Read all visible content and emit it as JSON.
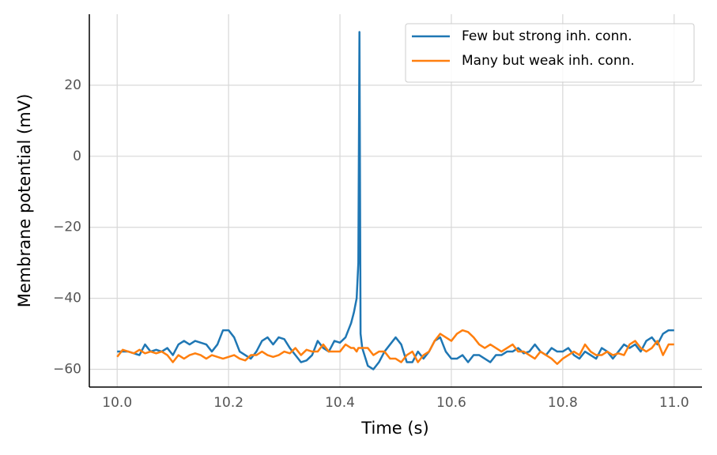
{
  "chart_data": {
    "type": "line",
    "x_label": "Time (s)",
    "y_label": "Membrane potential (mV)",
    "x": [
      10.0,
      10.01,
      10.02,
      10.03,
      10.04,
      10.05,
      10.06,
      10.07,
      10.08,
      10.09,
      10.1,
      10.11,
      10.12,
      10.13,
      10.14,
      10.15,
      10.16,
      10.17,
      10.18,
      10.19,
      10.2,
      10.21,
      10.22,
      10.23,
      10.24,
      10.25,
      10.26,
      10.27,
      10.28,
      10.29,
      10.3,
      10.31,
      10.32,
      10.33,
      10.34,
      10.35,
      10.36,
      10.37,
      10.38,
      10.39,
      10.4,
      10.41,
      10.42,
      10.425,
      10.43,
      10.433,
      10.435,
      10.437,
      10.44,
      10.45,
      10.46,
      10.47,
      10.48,
      10.49,
      10.5,
      10.51,
      10.52,
      10.53,
      10.54,
      10.55,
      10.56,
      10.57,
      10.58,
      10.59,
      10.6,
      10.61,
      10.62,
      10.63,
      10.64,
      10.65,
      10.66,
      10.67,
      10.68,
      10.69,
      10.7,
      10.71,
      10.72,
      10.73,
      10.74,
      10.75,
      10.76,
      10.77,
      10.78,
      10.79,
      10.8,
      10.81,
      10.82,
      10.83,
      10.84,
      10.85,
      10.86,
      10.87,
      10.88,
      10.89,
      10.9,
      10.91,
      10.92,
      10.93,
      10.94,
      10.95,
      10.96,
      10.97,
      10.98,
      10.99,
      11.0
    ],
    "series": [
      {
        "name": "Few but strong inh. conn.",
        "color": "#1f77b4",
        "values": [
          -55,
          -55,
          -55,
          -55.5,
          -56,
          -53,
          -55,
          -54.5,
          -55,
          -54,
          -56,
          -53,
          -52,
          -53,
          -52,
          -52.5,
          -53,
          -55,
          -53,
          -49,
          -49,
          -51,
          -55,
          -56,
          -57,
          -55,
          -52,
          -51,
          -53,
          -51,
          -51.5,
          -54,
          -56,
          -58,
          -57.5,
          -56,
          -52,
          -54,
          -55,
          -52,
          -52.5,
          -51,
          -47,
          -44,
          -40,
          -30,
          35,
          -50,
          -54,
          -59,
          -60,
          -58,
          -55,
          -53,
          -51,
          -53,
          -58,
          -58,
          -55,
          -57,
          -55,
          -52,
          -51,
          -55,
          -57,
          -57,
          -56,
          -58,
          -56,
          -56,
          -57,
          -58,
          -56,
          -56,
          -55,
          -55,
          -54,
          -55.5,
          -55,
          -53,
          -55,
          -56,
          -54,
          -55,
          -55,
          -54,
          -56,
          -57,
          -55,
          -56,
          -57,
          -54,
          -55,
          -57,
          -55,
          -53,
          -54,
          -53,
          -55,
          -52,
          -51,
          -53,
          -50,
          -49,
          -49
        ]
      },
      {
        "name": "Many but weak inh. conn.",
        "color": "#ff7f0e",
        "values": [
          -56.5,
          -54.5,
          -55,
          -55.5,
          -54.5,
          -55.5,
          -55,
          -55.5,
          -55,
          -56,
          -58,
          -56,
          -57,
          -56,
          -55.5,
          -56,
          -57,
          -56,
          -56.5,
          -57,
          -56.5,
          -56,
          -57,
          -57.5,
          -56,
          -56,
          -55,
          -56,
          -56.5,
          -56,
          -55,
          -55.5,
          -54,
          -56,
          -54.5,
          -55,
          -55,
          -53,
          -55,
          -55,
          -55,
          -53,
          -54,
          -54,
          -55,
          -54,
          -54,
          -54,
          -54,
          -54,
          -56,
          -55,
          -55,
          -57,
          -57,
          -58,
          -56,
          -55,
          -58,
          -56,
          -55,
          -52,
          -50,
          -51,
          -52,
          -50,
          -49,
          -49.5,
          -51,
          -53,
          -54,
          -53,
          -54,
          -55,
          -54,
          -53,
          -55,
          -55,
          -56,
          -57,
          -55,
          -56,
          -57,
          -58.5,
          -57,
          -56,
          -55,
          -56,
          -53,
          -55,
          -56,
          -56,
          -55,
          -56,
          -55.5,
          -56,
          -53,
          -52,
          -54,
          -55,
          -54,
          -52,
          -56,
          -53,
          -53
        ]
      }
    ],
    "xlim": [
      9.95,
      11.05
    ],
    "ylim": [
      -65,
      40
    ],
    "xticks": [
      {
        "value": 10.0,
        "label": "10.0"
      },
      10.2,
      10.4,
      10.6,
      10.8,
      {
        "value": 11.0,
        "label": "11.0"
      }
    ],
    "yticks": [
      {
        "value": -60,
        "label": "−60"
      },
      {
        "value": -40,
        "label": "−40"
      },
      {
        "value": -20,
        "label": "−20"
      },
      0,
      20
    ],
    "grid": true,
    "legend": "upper right"
  }
}
